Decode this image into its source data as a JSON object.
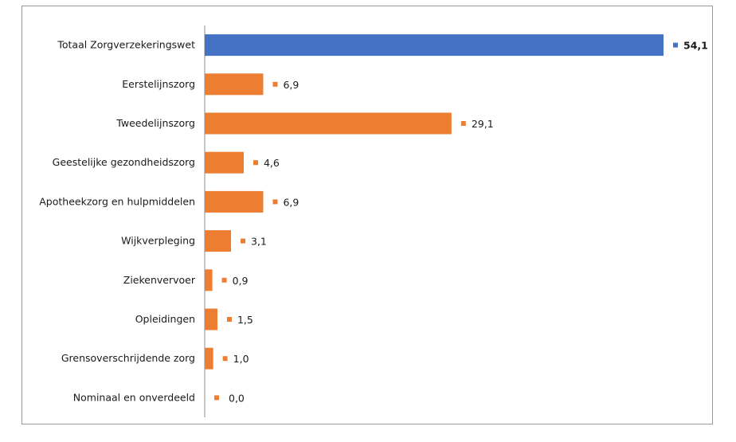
{
  "chart_data": {
    "type": "bar",
    "orientation": "horizontal",
    "title": "",
    "xlabel": "",
    "ylabel": "",
    "categories": [
      "Totaal Zorgverzekeringswet",
      "Eerstelijnszorg",
      "Tweedelijnszorg",
      "Geestelijke gezondheidszorg",
      "Apotheekzorg en hulpmiddelen",
      "Wijkverpleging",
      "Ziekenvervoer",
      "Opleidingen",
      "Grensoverschrijdende zorg",
      "Nominaal en onverdeeld"
    ],
    "values": [
      54.1,
      6.9,
      29.1,
      4.6,
      6.9,
      3.1,
      0.9,
      1.5,
      1.0,
      0.0
    ],
    "value_labels": [
      "54,1",
      "6,9",
      "29,1",
      "4,6",
      "6,9",
      "3,1",
      "0,9",
      "1,5",
      "1,0",
      "0,0"
    ],
    "xlim": [
      0,
      54.1
    ],
    "grid": false,
    "legend": "none",
    "colors": {
      "total": "#4472c4",
      "component": "#ed7d31",
      "axis": "#8c8c8c",
      "text": "#1a1a1a"
    },
    "highlight_index": 0
  }
}
